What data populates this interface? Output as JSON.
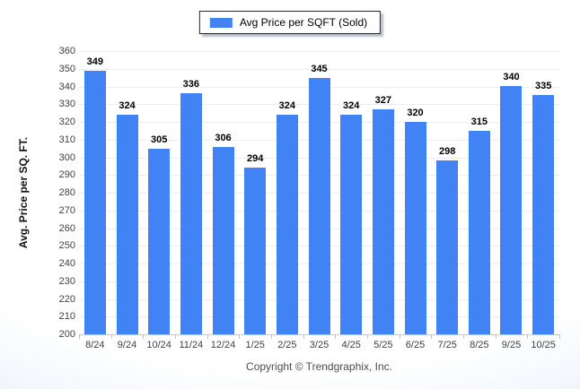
{
  "legend": {
    "label": "Avg Price per SQFT (Sold)",
    "swatch_color": "#4183f4"
  },
  "footer": {
    "copyright": "Copyright © Trendgraphix, Inc."
  },
  "chart_data": {
    "type": "bar",
    "title": "",
    "categories": [
      "8/24",
      "9/24",
      "10/24",
      "11/24",
      "12/24",
      "1/25",
      "2/25",
      "3/25",
      "4/25",
      "5/25",
      "6/25",
      "7/25",
      "8/25",
      "9/25",
      "10/25"
    ],
    "series": [
      {
        "name": "Avg Price per SQFT (Sold)",
        "values": [
          349,
          324,
          305,
          336,
          306,
          294,
          324,
          345,
          324,
          327,
          320,
          298,
          315,
          340,
          335
        ]
      }
    ],
    "xlabel": "",
    "ylabel": "Avg. Price per SQ. FT.",
    "ylim": [
      200,
      360
    ],
    "ytick_step": 10,
    "bar_color": "#4183f4",
    "grid": "horizontal",
    "legend_position": "top-center",
    "value_labels": "above-bars"
  }
}
